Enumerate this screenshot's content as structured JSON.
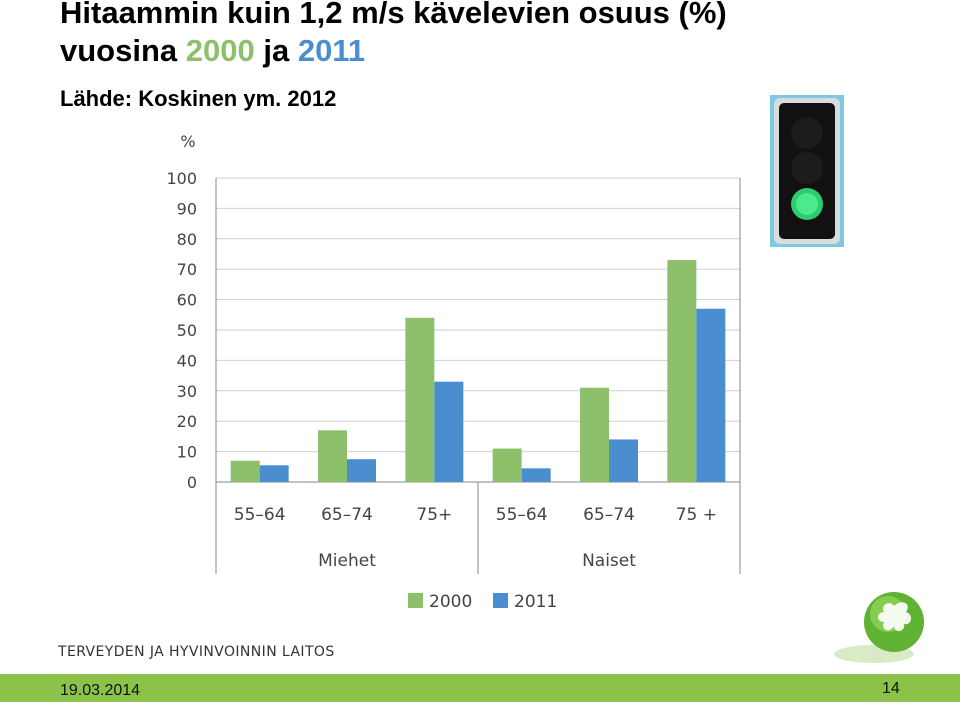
{
  "slide": {
    "title_line1": "Hitaammin kuin 1,2 m/s kävelevien osuus (%)",
    "title_prefix": "vuosina ",
    "title_year1": "2000",
    "title_mid": " ja ",
    "title_year2": "2011",
    "source": "Lähde: Koskinen ym. 2012",
    "organization": "TERVEYDEN JA HYVINVOINNIN LAITOS",
    "date": "19.03.2014",
    "page_number": "14"
  },
  "colors": {
    "series_2000": "#8dc06a",
    "series_2011": "#4a8ed0",
    "footer_bar": "#8bc34a"
  },
  "chart_data": {
    "type": "bar",
    "title": "",
    "ylabel": "%",
    "xlabel": "",
    "ylim": [
      0,
      100
    ],
    "yticks": [
      0,
      10,
      20,
      30,
      40,
      50,
      60,
      70,
      80,
      90,
      100
    ],
    "grid": true,
    "legend_position": "bottom",
    "categories": [
      "55–64",
      "65–74",
      "75+",
      "55–64",
      "65–74",
      "75 +"
    ],
    "groups": [
      {
        "label": "Miehet",
        "categories": [
          "55–64",
          "65–74",
          "75+"
        ]
      },
      {
        "label": "Naiset",
        "categories": [
          "55–64",
          "65–74",
          "75 +"
        ]
      }
    ],
    "series": [
      {
        "name": "2000",
        "color": "#8dc06a",
        "values": [
          7,
          17,
          54,
          11,
          31,
          73
        ]
      },
      {
        "name": "2011",
        "color": "#4a8ed0",
        "values": [
          5.5,
          7.5,
          33,
          4.5,
          14,
          57
        ]
      }
    ]
  }
}
